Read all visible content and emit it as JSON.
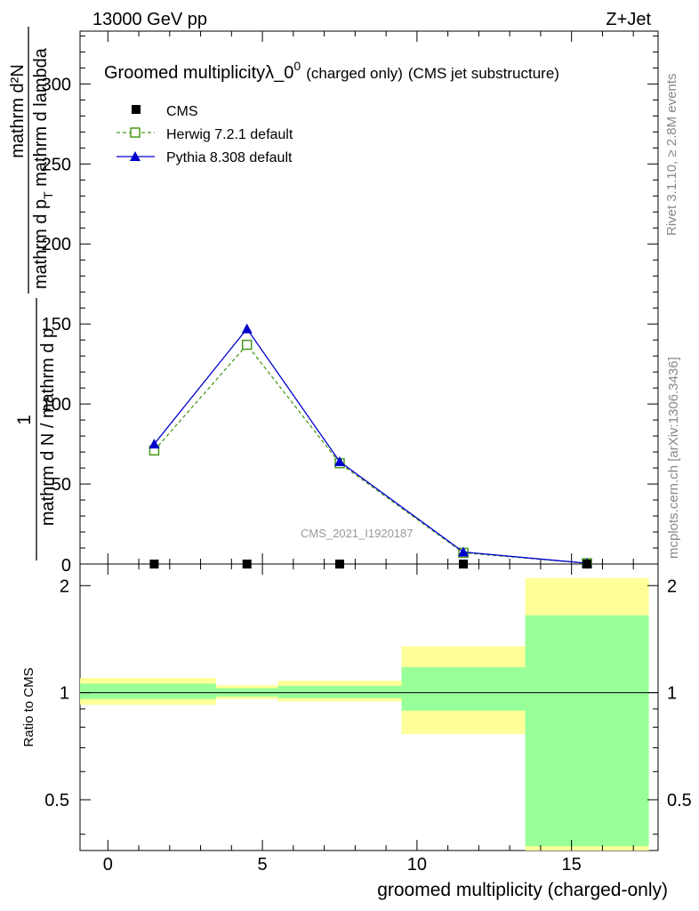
{
  "header": {
    "left": "13000 GeV pp",
    "right": "Z+Jet"
  },
  "main_plot": {
    "title": "Groomed multiplicity",
    "title_symbol": "λ_0",
    "title_sup": "0",
    "title_note1": "(charged only)",
    "title_note2": "(CMS jet substructure)",
    "ylabel_top": "1",
    "ylabel_bottom": "mathrm d N / mathrm d p",
    "ylabel_num": "mathrm d²N",
    "ylabel_den": "mathrm d p",
    "ylabel_den_sub": "T",
    "ylabel_den_tail": " mathrm d lambda",
    "watermark": "CMS_2021_I1920187",
    "y_ticks": [
      "50",
      "100",
      "150",
      "200",
      "250",
      "300"
    ],
    "y_zero": "0"
  },
  "side_labels": {
    "rivet": "Rivet 3.1.10, ≥ 2.8M events",
    "mcplots": "mcplots.cern.ch [arXiv:1306.3436]"
  },
  "ratio_plot": {
    "ylabel": "Ratio to CMS",
    "y_ticks": [
      "0.5",
      "1",
      "2"
    ],
    "x_ticks": [
      "0",
      "5",
      "10",
      "15"
    ],
    "xlabel": "groomed multiplicity (charged-only)"
  },
  "legend": [
    {
      "name": "CMS",
      "color": "#000000",
      "marker": "filled-square"
    },
    {
      "name": "Herwig 7.2.1 default",
      "color": "#4a9a1a",
      "marker": "open-square"
    },
    {
      "name": "Pythia 8.308 default",
      "color": "#0000cc",
      "marker": "filled-triangle"
    }
  ],
  "chart_data": {
    "type": "line",
    "xlim": [
      -0.9,
      17.8
    ],
    "ylim": [
      0,
      333
    ],
    "ratio_ylim_log": [
      0.36,
      2.3
    ],
    "x": [
      1.5,
      4.5,
      7.5,
      11.5,
      15.5
    ],
    "series": [
      {
        "name": "CMS",
        "values": [
          0,
          0,
          0,
          0,
          0
        ]
      },
      {
        "name": "Herwig 7.2.1 default",
        "values": [
          71,
          137,
          63,
          7,
          0.5
        ]
      },
      {
        "name": "Pythia 8.308 default",
        "values": [
          75,
          147,
          64,
          7.5,
          0.5
        ]
      }
    ],
    "ratio_bands": {
      "bins": [
        [
          -0.9,
          3.5
        ],
        [
          3.5,
          5.5
        ],
        [
          5.5,
          9.5
        ],
        [
          9.5,
          13.5
        ],
        [
          13.5,
          17.5
        ]
      ],
      "stat": [
        [
          0.96,
          1.06
        ],
        [
          0.975,
          1.03
        ],
        [
          0.965,
          1.045
        ],
        [
          0.89,
          1.18
        ],
        [
          0.37,
          1.65
        ]
      ],
      "total": [
        [
          0.925,
          1.1
        ],
        [
          0.96,
          1.05
        ],
        [
          0.945,
          1.08
        ],
        [
          0.765,
          1.35
        ],
        [
          0.345,
          2.1
        ]
      ],
      "stat_color": "#99ff99",
      "total_color": "#ffff99"
    }
  }
}
